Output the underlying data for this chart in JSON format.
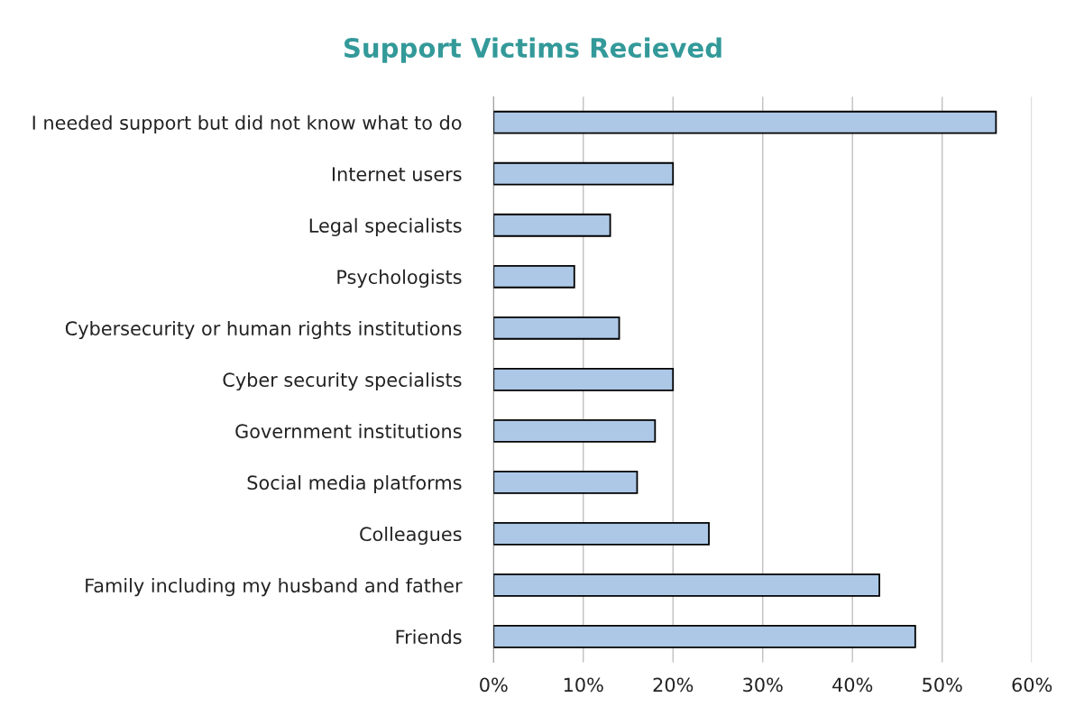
{
  "chart_data": {
    "type": "bar",
    "orientation": "horizontal",
    "title": "Support Victims Recieved",
    "categories": [
      "I needed support but did not know what to do",
      "Internet users",
      "Legal specialists",
      "Psychologists",
      "Cybersecurity or human rights institutions",
      "Cyber security specialists",
      "Government institutions",
      "Social media platforms",
      "Colleagues",
      "Family including my husband and father",
      "Friends"
    ],
    "values": [
      56,
      20,
      13,
      9,
      14,
      20,
      18,
      16,
      24,
      43,
      47
    ],
    "color": "#adc8e6",
    "xlim": [
      0,
      60
    ],
    "xticks": [
      {
        "value": 0,
        "label": "0%"
      },
      {
        "value": 10,
        "label": "10%"
      },
      {
        "value": 20,
        "label": "20%"
      },
      {
        "value": 30,
        "label": "30%"
      },
      {
        "value": 40,
        "label": "40%"
      },
      {
        "value": 50,
        "label": "50%"
      },
      {
        "value": 60,
        "label": "60%"
      }
    ],
    "grid": "x",
    "legend": false
  }
}
